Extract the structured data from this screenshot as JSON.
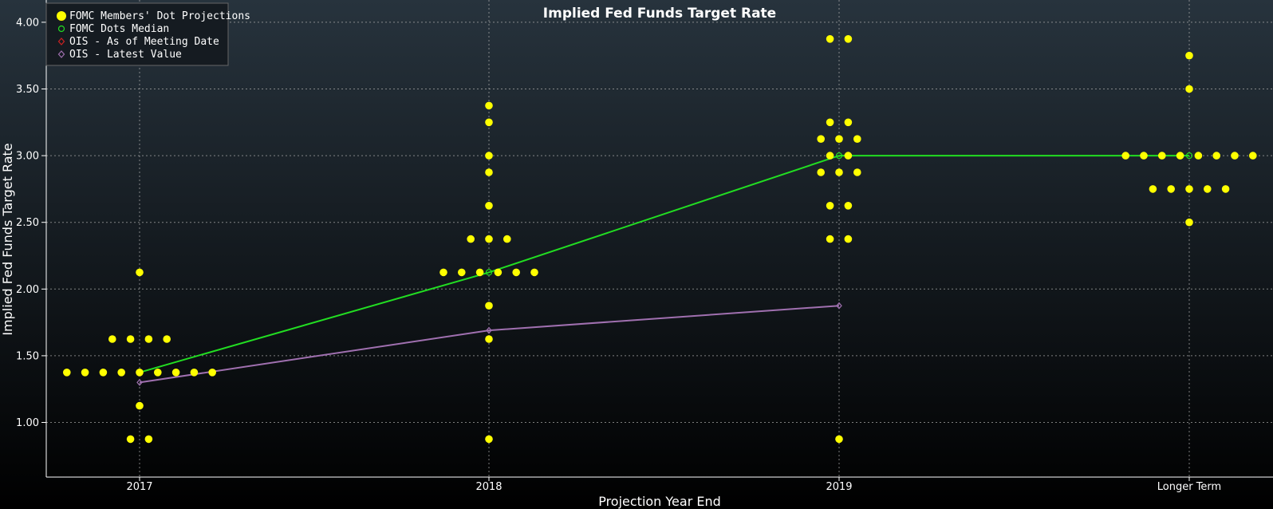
{
  "colors": {
    "dots": "#ffff00",
    "median": "#22dd22",
    "ois_meeting": "#cc2222",
    "ois_latest": "#a070b0",
    "bg_top": "#27333d",
    "bg_bottom": "#000000",
    "grid": "#b0b0b0",
    "axis": "#ffffff",
    "legend_bg": "#151b21",
    "legend_border": "#666666"
  },
  "chart_data": {
    "type": "scatter",
    "title": "Implied Fed Funds Target Rate",
    "xlabel": "Projection Year End",
    "ylabel": "Implied Fed Funds Target Rate",
    "categories": [
      "2017",
      "2018",
      "2019",
      "Longer Term"
    ],
    "ylim": [
      0.6,
      4.1
    ],
    "yticks": [
      "1.00",
      "1.50",
      "2.00",
      "2.50",
      "3.00",
      "3.50",
      "4.00"
    ],
    "grid": true,
    "legend_position": "top-left",
    "legend": [
      "FOMC Members' Dot Projections",
      "FOMC Dots Median",
      "OIS - As of Meeting Date",
      "OIS - Latest Value"
    ],
    "dot_projections": [
      {
        "category": "2017",
        "rows": [
          {
            "rate": 2.125,
            "count": 1
          },
          {
            "rate": 1.625,
            "count": 4
          },
          {
            "rate": 1.375,
            "count": 9
          },
          {
            "rate": 1.125,
            "count": 1
          },
          {
            "rate": 0.875,
            "count": 2
          }
        ]
      },
      {
        "category": "2018",
        "rows": [
          {
            "rate": 3.375,
            "count": 1
          },
          {
            "rate": 3.25,
            "count": 1
          },
          {
            "rate": 3.0,
            "count": 1
          },
          {
            "rate": 2.875,
            "count": 1
          },
          {
            "rate": 2.625,
            "count": 1
          },
          {
            "rate": 2.375,
            "count": 3
          },
          {
            "rate": 2.125,
            "count": 6
          },
          {
            "rate": 1.875,
            "count": 1
          },
          {
            "rate": 1.625,
            "count": 1
          },
          {
            "rate": 0.875,
            "count": 1
          }
        ]
      },
      {
        "category": "2019",
        "rows": [
          {
            "rate": 3.875,
            "count": 2
          },
          {
            "rate": 3.25,
            "count": 2
          },
          {
            "rate": 3.125,
            "count": 3
          },
          {
            "rate": 3.0,
            "count": 2
          },
          {
            "rate": 2.875,
            "count": 3
          },
          {
            "rate": 2.625,
            "count": 2
          },
          {
            "rate": 2.375,
            "count": 2
          },
          {
            "rate": 0.875,
            "count": 1
          }
        ]
      },
      {
        "category": "Longer Term",
        "rows": [
          {
            "rate": 3.75,
            "count": 1
          },
          {
            "rate": 3.5,
            "count": 1
          },
          {
            "rate": 3.0,
            "count": 8
          },
          {
            "rate": 2.75,
            "count": 5
          },
          {
            "rate": 2.5,
            "count": 1
          }
        ]
      }
    ],
    "series": [
      {
        "name": "FOMC Dots Median",
        "values": [
          1.375,
          2.125,
          3.0,
          3.0
        ]
      },
      {
        "name": "OIS - Latest Value",
        "values": [
          1.3,
          1.69,
          1.875,
          null
        ]
      }
    ]
  }
}
